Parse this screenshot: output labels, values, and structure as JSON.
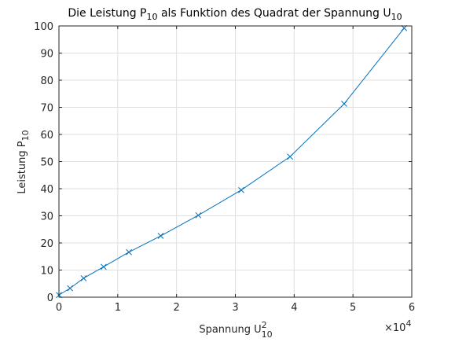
{
  "chart_data": {
    "type": "line",
    "title": {
      "main": "Die Leistung P",
      "sub1": "10",
      "mid": " als Funktion des Quadrat der Spannung U",
      "sub2": "10"
    },
    "xlabel": {
      "main": "Spannung U",
      "sup": "2",
      "sub": "10"
    },
    "ylabel": {
      "main": "Leistung P",
      "sub": "10"
    },
    "x_exponent": {
      "base": "×10",
      "power": "4"
    },
    "xlim": [
      0,
      6
    ],
    "ylim": [
      0,
      100
    ],
    "x_ticks": [
      "0",
      "1",
      "2",
      "3",
      "4",
      "5",
      "6"
    ],
    "y_ticks": [
      "0",
      "10",
      "20",
      "30",
      "40",
      "50",
      "60",
      "70",
      "80",
      "90",
      "100"
    ],
    "grid": true,
    "marker": "x",
    "colors": {
      "line": "#0072BD",
      "grid": "#dfdfdf",
      "axis": "#262626"
    },
    "series": [
      {
        "x": [
          0.0,
          0.19,
          0.42,
          0.76,
          1.19,
          1.73,
          2.37,
          3.1,
          3.93,
          4.85,
          5.87
        ],
        "values": [
          0.8,
          3.3,
          7.0,
          11.2,
          16.6,
          22.6,
          30.2,
          39.5,
          51.8,
          71.3,
          99.2
        ]
      }
    ]
  }
}
